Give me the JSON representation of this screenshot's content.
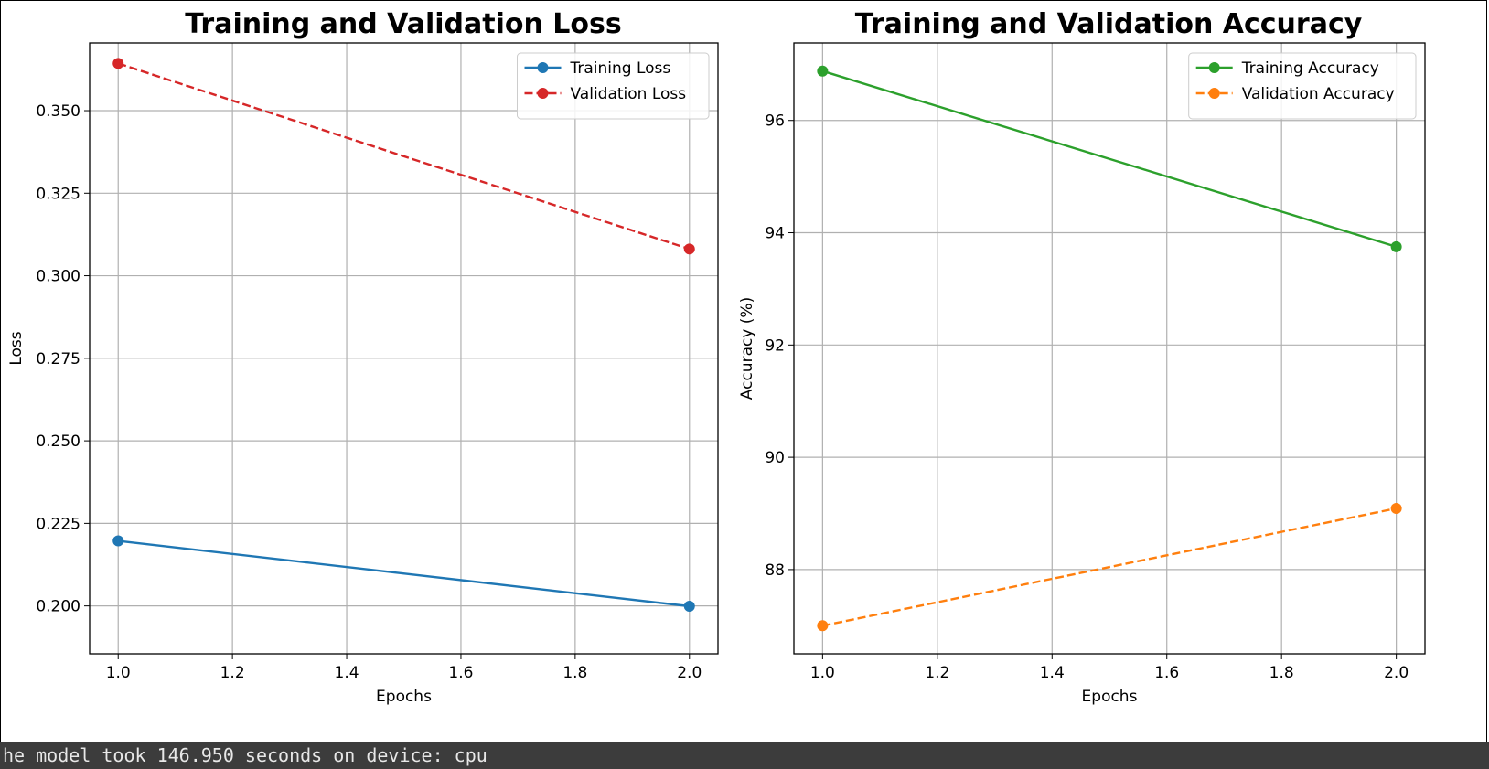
{
  "chart_data": [
    {
      "type": "line",
      "title": "Training and Validation Loss",
      "xlabel": "Epochs",
      "ylabel": "Loss",
      "x": [
        1.0,
        2.0
      ],
      "xlim": [
        0.95,
        2.05
      ],
      "ylim": [
        0.1855,
        0.3705
      ],
      "xticks": [
        1.0,
        1.2,
        1.4,
        1.6,
        1.8,
        2.0
      ],
      "xtick_labels": [
        "1.0",
        "1.2",
        "1.4",
        "1.6",
        "1.8",
        "2.0"
      ],
      "yticks": [
        0.2,
        0.225,
        0.25,
        0.275,
        0.3,
        0.325,
        0.35
      ],
      "ytick_labels": [
        "0.200",
        "0.225",
        "0.250",
        "0.275",
        "0.300",
        "0.325",
        "0.350"
      ],
      "grid": true,
      "legend_position": "top-right",
      "series": [
        {
          "name": "Training Loss",
          "values": [
            0.2197,
            0.1999
          ],
          "color": "#1f77b4",
          "dashed": false
        },
        {
          "name": "Validation Loss",
          "values": [
            0.3643,
            0.3081
          ],
          "color": "#d62728",
          "dashed": true
        }
      ]
    },
    {
      "type": "line",
      "title": "Training and Validation Accuracy",
      "xlabel": "Epochs",
      "ylabel": "Accuracy (%)",
      "x": [
        1.0,
        2.0
      ],
      "xlim": [
        0.95,
        2.05
      ],
      "ylim": [
        86.5,
        97.38
      ],
      "xticks": [
        1.0,
        1.2,
        1.4,
        1.6,
        1.8,
        2.0
      ],
      "xtick_labels": [
        "1.0",
        "1.2",
        "1.4",
        "1.6",
        "1.8",
        "2.0"
      ],
      "yticks": [
        88,
        90,
        92,
        94,
        96
      ],
      "ytick_labels": [
        "88",
        "90",
        "92",
        "94",
        "96"
      ],
      "grid": true,
      "legend_position": "top-right",
      "series": [
        {
          "name": "Training Accuracy",
          "values": [
            96.88,
            93.75
          ],
          "color": "#2ca02c",
          "dashed": false
        },
        {
          "name": "Validation Accuracy",
          "values": [
            87.0,
            89.09
          ],
          "color": "#ff7f0e",
          "dashed": true
        }
      ]
    }
  ],
  "console": {
    "text": "he model took 146.950 seconds on device: cpu"
  }
}
